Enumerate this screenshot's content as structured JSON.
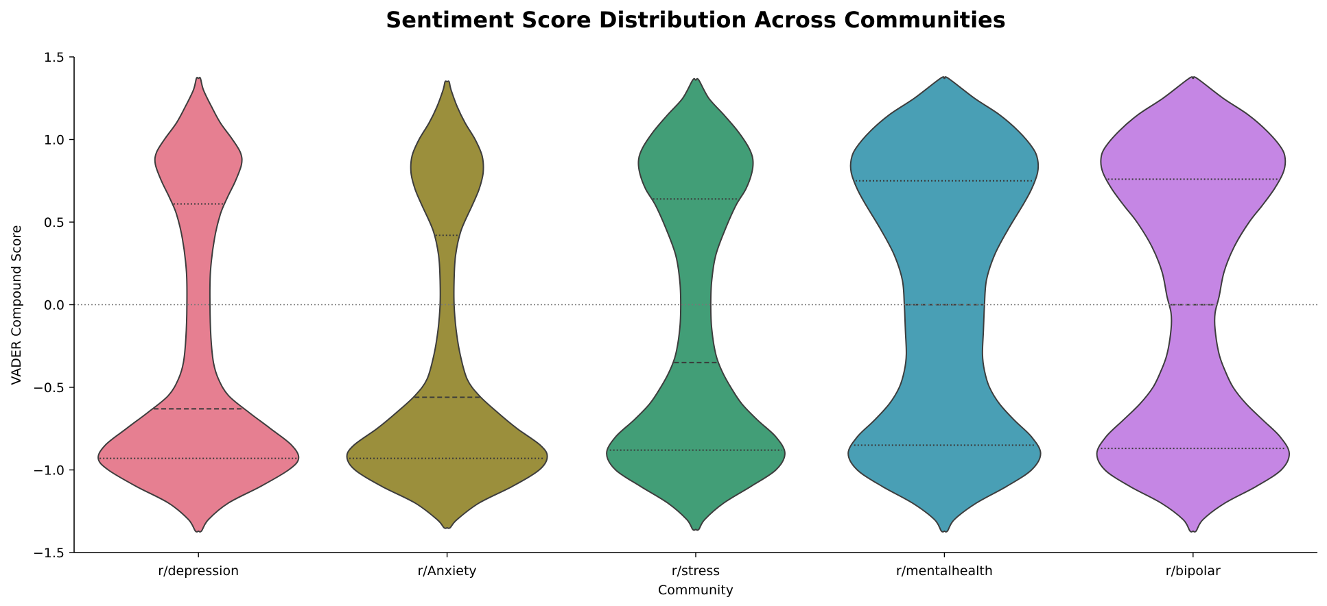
{
  "chart_data": {
    "type": "violin",
    "title": "Sentiment Score Distribution Across Communities",
    "xlabel": "Community",
    "ylabel": "VADER Compound Score",
    "ylim": [
      -1.5,
      1.5
    ],
    "yticks": [
      1.5,
      1.0,
      0.5,
      0.0,
      -0.5,
      -1.0,
      -1.5
    ],
    "ytick_labels": [
      "1.5",
      "1.0",
      "0.5",
      "0.0",
      "−0.5",
      "−1.0",
      "−1.5"
    ],
    "reference_line": 0.0,
    "grid": false,
    "categories": [
      "r/depression",
      "r/Anxiety",
      "r/stress",
      "r/mentalhealth",
      "r/bipolar"
    ],
    "series": [
      {
        "color": "#e67f91",
        "extent": [
          -1.37,
          1.37
        ],
        "quartiles": {
          "q1": -0.93,
          "median": -0.63,
          "q3": 0.61
        },
        "density": [
          [
            -1.37,
            0.03
          ],
          [
            -1.3,
            0.1
          ],
          [
            -1.2,
            0.3
          ],
          [
            -1.1,
            0.62
          ],
          [
            -1.0,
            0.9
          ],
          [
            -0.93,
            1.0
          ],
          [
            -0.85,
            0.93
          ],
          [
            -0.75,
            0.72
          ],
          [
            -0.65,
            0.5
          ],
          [
            -0.55,
            0.3
          ],
          [
            -0.45,
            0.2
          ],
          [
            -0.35,
            0.15
          ],
          [
            -0.2,
            0.125
          ],
          [
            0.0,
            0.115
          ],
          [
            0.2,
            0.12
          ],
          [
            0.4,
            0.16
          ],
          [
            0.55,
            0.22
          ],
          [
            0.65,
            0.29
          ],
          [
            0.75,
            0.37
          ],
          [
            0.85,
            0.43
          ],
          [
            0.92,
            0.42
          ],
          [
            1.0,
            0.34
          ],
          [
            1.1,
            0.22
          ],
          [
            1.2,
            0.13
          ],
          [
            1.3,
            0.05
          ],
          [
            1.37,
            0.02
          ]
        ]
      },
      {
        "color": "#9b8f3c",
        "extent": [
          -1.35,
          1.35
        ],
        "quartiles": {
          "q1": -0.93,
          "median": -0.56,
          "q3": 0.42
        },
        "density": [
          [
            -1.35,
            0.03
          ],
          [
            -1.3,
            0.1
          ],
          [
            -1.2,
            0.32
          ],
          [
            -1.1,
            0.65
          ],
          [
            -1.0,
            0.92
          ],
          [
            -0.92,
            1.0
          ],
          [
            -0.85,
            0.93
          ],
          [
            -0.75,
            0.7
          ],
          [
            -0.65,
            0.5
          ],
          [
            -0.55,
            0.32
          ],
          [
            -0.45,
            0.2
          ],
          [
            -0.3,
            0.13
          ],
          [
            -0.15,
            0.09
          ],
          [
            0.0,
            0.07
          ],
          [
            0.15,
            0.07
          ],
          [
            0.3,
            0.085
          ],
          [
            0.45,
            0.14
          ],
          [
            0.6,
            0.25
          ],
          [
            0.7,
            0.32
          ],
          [
            0.8,
            0.36
          ],
          [
            0.9,
            0.35
          ],
          [
            1.0,
            0.28
          ],
          [
            1.1,
            0.18
          ],
          [
            1.2,
            0.1
          ],
          [
            1.3,
            0.04
          ],
          [
            1.35,
            0.02
          ]
        ]
      },
      {
        "color": "#429e77",
        "extent": [
          -1.36,
          1.36
        ],
        "quartiles": {
          "q1": -0.88,
          "median": -0.35,
          "q3": 0.64
        },
        "density": [
          [
            -1.36,
            0.03
          ],
          [
            -1.3,
            0.09
          ],
          [
            -1.2,
            0.28
          ],
          [
            -1.1,
            0.55
          ],
          [
            -1.0,
            0.8
          ],
          [
            -0.9,
            0.89
          ],
          [
            -0.8,
            0.8
          ],
          [
            -0.7,
            0.62
          ],
          [
            -0.6,
            0.46
          ],
          [
            -0.5,
            0.35
          ],
          [
            -0.4,
            0.26
          ],
          [
            -0.3,
            0.2
          ],
          [
            -0.15,
            0.16
          ],
          [
            0.0,
            0.15
          ],
          [
            0.15,
            0.16
          ],
          [
            0.3,
            0.2
          ],
          [
            0.45,
            0.29
          ],
          [
            0.6,
            0.4
          ],
          [
            0.7,
            0.5
          ],
          [
            0.8,
            0.56
          ],
          [
            0.88,
            0.57
          ],
          [
            0.95,
            0.53
          ],
          [
            1.05,
            0.42
          ],
          [
            1.15,
            0.28
          ],
          [
            1.25,
            0.13
          ],
          [
            1.36,
            0.03
          ]
        ]
      },
      {
        "color": "#499fb5",
        "extent": [
          -1.37,
          1.37
        ],
        "quartiles": {
          "q1": -0.85,
          "median": 0.0,
          "q3": 0.75
        },
        "density": [
          [
            -1.37,
            0.03
          ],
          [
            -1.3,
            0.1
          ],
          [
            -1.2,
            0.32
          ],
          [
            -1.1,
            0.62
          ],
          [
            -1.0,
            0.87
          ],
          [
            -0.9,
            0.96
          ],
          [
            -0.8,
            0.87
          ],
          [
            -0.7,
            0.7
          ],
          [
            -0.6,
            0.55
          ],
          [
            -0.5,
            0.45
          ],
          [
            -0.4,
            0.4
          ],
          [
            -0.3,
            0.38
          ],
          [
            -0.15,
            0.39
          ],
          [
            0.0,
            0.4
          ],
          [
            0.15,
            0.42
          ],
          [
            0.3,
            0.5
          ],
          [
            0.45,
            0.63
          ],
          [
            0.6,
            0.78
          ],
          [
            0.7,
            0.87
          ],
          [
            0.8,
            0.93
          ],
          [
            0.88,
            0.93
          ],
          [
            0.95,
            0.88
          ],
          [
            1.05,
            0.74
          ],
          [
            1.15,
            0.55
          ],
          [
            1.25,
            0.3
          ],
          [
            1.37,
            0.04
          ]
        ]
      },
      {
        "color": "#c586e4",
        "extent": [
          -1.37,
          1.37
        ],
        "quartiles": {
          "q1": -0.87,
          "median": 0.0,
          "q3": 0.76
        },
        "density": [
          [
            -1.37,
            0.03
          ],
          [
            -1.3,
            0.1
          ],
          [
            -1.2,
            0.32
          ],
          [
            -1.1,
            0.63
          ],
          [
            -1.0,
            0.88
          ],
          [
            -0.9,
            0.96
          ],
          [
            -0.8,
            0.87
          ],
          [
            -0.7,
            0.7
          ],
          [
            -0.6,
            0.53
          ],
          [
            -0.5,
            0.4
          ],
          [
            -0.4,
            0.32
          ],
          [
            -0.3,
            0.26
          ],
          [
            -0.15,
            0.22
          ],
          [
            -0.05,
            0.22
          ],
          [
            0.05,
            0.26
          ],
          [
            0.2,
            0.31
          ],
          [
            0.35,
            0.41
          ],
          [
            0.5,
            0.56
          ],
          [
            0.6,
            0.69
          ],
          [
            0.7,
            0.81
          ],
          [
            0.8,
            0.9
          ],
          [
            0.88,
            0.92
          ],
          [
            0.95,
            0.88
          ],
          [
            1.05,
            0.74
          ],
          [
            1.15,
            0.55
          ],
          [
            1.25,
            0.3
          ],
          [
            1.37,
            0.04
          ]
        ]
      }
    ]
  }
}
